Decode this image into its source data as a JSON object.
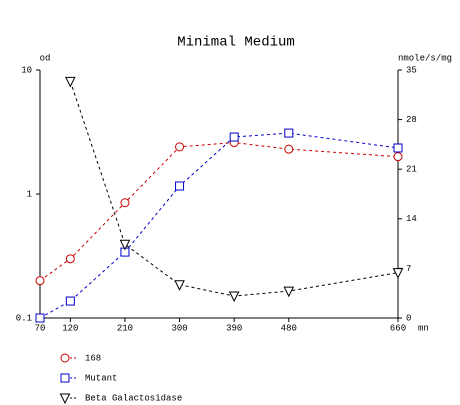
{
  "chart_data": {
    "type": "line",
    "title": "Minimal Medium",
    "ylabel": "od",
    "y2label": "nmole/s/mg",
    "xlabel": "mn",
    "x": [
      70,
      120,
      210,
      300,
      390,
      480,
      660
    ],
    "xlim": [
      70,
      660
    ],
    "xticks": [
      70,
      120,
      210,
      300,
      390,
      480,
      660
    ],
    "ylim": [
      0.1,
      10
    ],
    "yticks": [
      0.1,
      1,
      10
    ],
    "ylog": true,
    "y2lim": [
      0,
      35
    ],
    "y2ticks": [
      0,
      7,
      14,
      21,
      28,
      35
    ],
    "grid": false,
    "legend": "bottom",
    "line_style": "dashed",
    "series": [
      {
        "name": "168",
        "color": "#cc0000",
        "marker": "circle",
        "values": [
          0.2,
          0.3,
          0.85,
          2.4,
          2.6,
          2.3,
          2.0
        ]
      },
      {
        "name": "Mutant",
        "color": "#0000cc",
        "marker": "square",
        "values": [
          0.1,
          0.137,
          0.34,
          1.16,
          2.88,
          3.1,
          2.35
        ]
      },
      {
        "name": "Beta Galactosidase",
        "color": "#000000",
        "marker": "triangle-down",
        "axis": "y2",
        "values": [
          null,
          33.4,
          10.4,
          4.7,
          3.1,
          3.8,
          6.4
        ]
      }
    ]
  }
}
